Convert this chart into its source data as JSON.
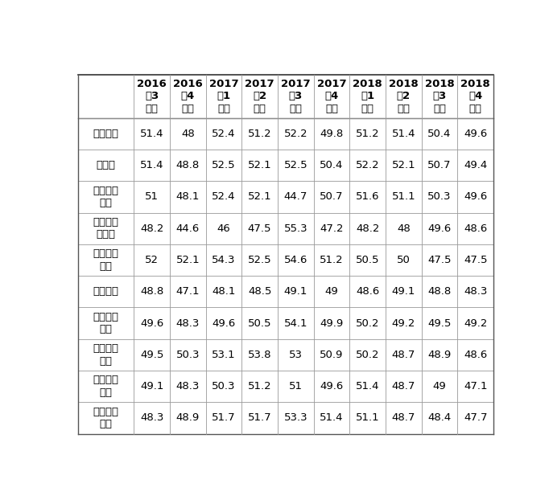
{
  "col_headers": [
    [
      "2016",
      "年3",
      "季度"
    ],
    [
      "2016",
      "年4",
      "季度"
    ],
    [
      "2017",
      "年1",
      "季度"
    ],
    [
      "2017",
      "年2",
      "季度"
    ],
    [
      "2017",
      "年3",
      "季度"
    ],
    [
      "2017",
      "年4",
      "季度"
    ],
    [
      "2018",
      "年1",
      "季度"
    ],
    [
      "2018",
      "年2",
      "季度"
    ],
    [
      "2018",
      "年3",
      "季度"
    ],
    [
      "2018",
      "年4",
      "季度"
    ]
  ],
  "row_headers": [
    [
      "新订单量"
    ],
    [
      "生产量"
    ],
    [
      "原材料采",
      "购量"
    ],
    [
      "原材料购",
      "入单价"
    ],
    [
      "单位产品",
      "售价"
    ],
    [
      "从业人数"
    ],
    [
      "企业资金",
      "周转"
    ],
    [
      "企业盈利",
      "水平"
    ],
    [
      "下游产业",
      "需求"
    ],
    [
      "企业经营",
      "环境"
    ]
  ],
  "data": [
    [
      51.4,
      48,
      52.4,
      51.2,
      52.2,
      49.8,
      51.2,
      51.4,
      50.4,
      49.6
    ],
    [
      51.4,
      48.8,
      52.5,
      52.1,
      52.5,
      50.4,
      52.2,
      52.1,
      50.7,
      49.4
    ],
    [
      51,
      48.1,
      52.4,
      52.1,
      44.7,
      50.7,
      51.6,
      51.1,
      50.3,
      49.6
    ],
    [
      48.2,
      44.6,
      46,
      47.5,
      55.3,
      47.2,
      48.2,
      48,
      49.6,
      48.6
    ],
    [
      52,
      52.1,
      54.3,
      52.5,
      54.6,
      51.2,
      50.5,
      50,
      47.5,
      47.5
    ],
    [
      48.8,
      47.1,
      48.1,
      48.5,
      49.1,
      49,
      48.6,
      49.1,
      48.8,
      48.3
    ],
    [
      49.6,
      48.3,
      49.6,
      50.5,
      54.1,
      49.9,
      50.2,
      49.2,
      49.5,
      49.2
    ],
    [
      49.5,
      50.3,
      53.1,
      53.8,
      53,
      50.9,
      50.2,
      48.7,
      48.9,
      48.6
    ],
    [
      49.1,
      48.3,
      50.3,
      51.2,
      51,
      49.6,
      51.4,
      48.7,
      49,
      47.1
    ],
    [
      48.3,
      48.9,
      51.7,
      51.7,
      53.3,
      51.4,
      51.1,
      48.7,
      48.4,
      47.7
    ]
  ],
  "bg_color": "#ffffff",
  "text_color": "#000000",
  "border_color": "#999999",
  "header_fontsize": 9.5,
  "data_fontsize": 9.5,
  "row_header_fontsize": 9.5
}
